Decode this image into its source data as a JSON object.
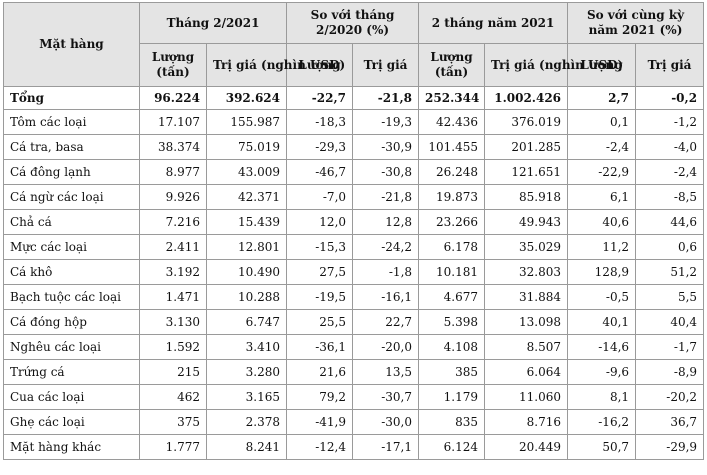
{
  "headers": {
    "item": "Mặt hàng",
    "group1": "Tháng 2/2021",
    "group2": "So với tháng 2/2020 (%)",
    "group3": "2 tháng năm 2021",
    "group4": "So với cùng kỳ năm 2021 (%)",
    "sub": [
      "Lượng (tấn)",
      "Trị giá (nghìn USD)",
      "Lượng",
      "Trị giá",
      "Lượng (tấn)",
      "Trị giá (nghìn USD)",
      "Lượng",
      "Trị giá"
    ]
  },
  "rows": [
    {
      "name": "Tổng",
      "total": true,
      "v": [
        "96.224",
        "392.624",
        "-22,7",
        "-21,8",
        "252.344",
        "1.002.426",
        "2,7",
        "-0,2"
      ]
    },
    {
      "name": "Tôm các loại",
      "v": [
        "17.107",
        "155.987",
        "-18,3",
        "-19,3",
        "42.436",
        "376.019",
        "0,1",
        "-1,2"
      ]
    },
    {
      "name": "Cá tra, basa",
      "v": [
        "38.374",
        "75.019",
        "-29,3",
        "-30,9",
        "101.455",
        "201.285",
        "-2,4",
        "-4,0"
      ]
    },
    {
      "name": "Cá đông lạnh",
      "v": [
        "8.977",
        "43.009",
        "-46,7",
        "-30,8",
        "26.248",
        "121.651",
        "-22,9",
        "-2,4"
      ]
    },
    {
      "name": "Cá ngừ các loại",
      "v": [
        "9.926",
        "42.371",
        "-7,0",
        "-21,8",
        "19.873",
        "85.918",
        "6,1",
        "-8,5"
      ]
    },
    {
      "name": "Chả cá",
      "v": [
        "7.216",
        "15.439",
        "12,0",
        "12,8",
        "23.266",
        "49.943",
        "40,6",
        "44,6"
      ]
    },
    {
      "name": "Mực các loại",
      "v": [
        "2.411",
        "12.801",
        "-15,3",
        "-24,2",
        "6.178",
        "35.029",
        "11,2",
        "0,6"
      ]
    },
    {
      "name": "Cá khô",
      "v": [
        "3.192",
        "10.490",
        "27,5",
        "-1,8",
        "10.181",
        "32.803",
        "128,9",
        "51,2"
      ]
    },
    {
      "name": "Bạch tuộc các loại",
      "v": [
        "1.471",
        "10.288",
        "-19,5",
        "-16,1",
        "4.677",
        "31.884",
        "-0,5",
        "5,5"
      ]
    },
    {
      "name": "Cá đóng hộp",
      "v": [
        "3.130",
        "6.747",
        "25,5",
        "22,7",
        "5.398",
        "13.098",
        "40,1",
        "40,4"
      ]
    },
    {
      "name": "Nghêu các loại",
      "v": [
        "1.592",
        "3.410",
        "-36,1",
        "-20,0",
        "4.108",
        "8.507",
        "-14,6",
        "-1,7"
      ]
    },
    {
      "name": "Trứng cá",
      "v": [
        "215",
        "3.280",
        "21,6",
        "13,5",
        "385",
        "6.064",
        "-9,6",
        "-8,9"
      ]
    },
    {
      "name": "Cua các loại",
      "v": [
        "462",
        "3.165",
        "79,2",
        "-30,7",
        "1.179",
        "11.060",
        "8,1",
        "-20,2"
      ]
    },
    {
      "name": "Ghẹ các loại",
      "v": [
        "375",
        "2.378",
        "-41,9",
        "-30,0",
        "835",
        "8.716",
        "-16,2",
        "36,7"
      ]
    },
    {
      "name": "Mặt hàng khác",
      "v": [
        "1.777",
        "8.241",
        "-12,4",
        "-17,1",
        "6.124",
        "20.449",
        "50,7",
        "-29,9"
      ]
    }
  ]
}
